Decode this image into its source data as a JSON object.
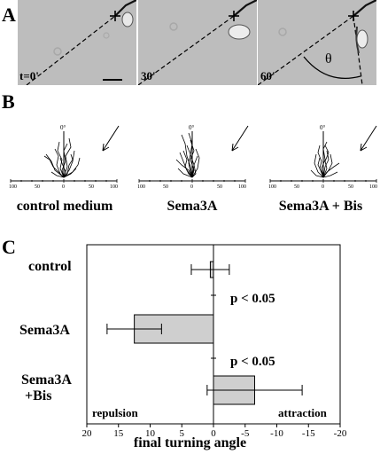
{
  "panelA": {
    "letter": "A",
    "asterisk": "*",
    "frames": [
      {
        "time": "t=0'"
      },
      {
        "time": "30'"
      },
      {
        "time": "60'"
      }
    ],
    "theta": "θ"
  },
  "panelB": {
    "letter": "B",
    "degree_label": "0°",
    "tick_labels": [
      "100",
      "50",
      "0",
      "50",
      "100"
    ],
    "conditions": [
      "control medium",
      "Sema3A",
      "Sema3A + Bis"
    ]
  },
  "panelC": {
    "letter": "C",
    "chart_data": {
      "type": "bar",
      "orientation": "horizontal",
      "categories": [
        "control",
        "Sema3A",
        "Sema3A\n+Bis"
      ],
      "values": [
        0.5,
        12.5,
        -6.5
      ],
      "errors": [
        3,
        4.3,
        7.5
      ],
      "xlabel": "final turning angle",
      "xlim": [
        20,
        -20
      ],
      "xticks": [
        20,
        15,
        10,
        5,
        0,
        -5,
        -10,
        -15,
        -20
      ],
      "annotations": [
        "p < 0.05",
        "p < 0.05"
      ],
      "left_label": "repulsion",
      "right_label": "attraction",
      "bar_color": "#cfcfcf"
    },
    "category_labels": [
      "control",
      "Sema3A",
      "Sema3A",
      "+Bis"
    ]
  }
}
